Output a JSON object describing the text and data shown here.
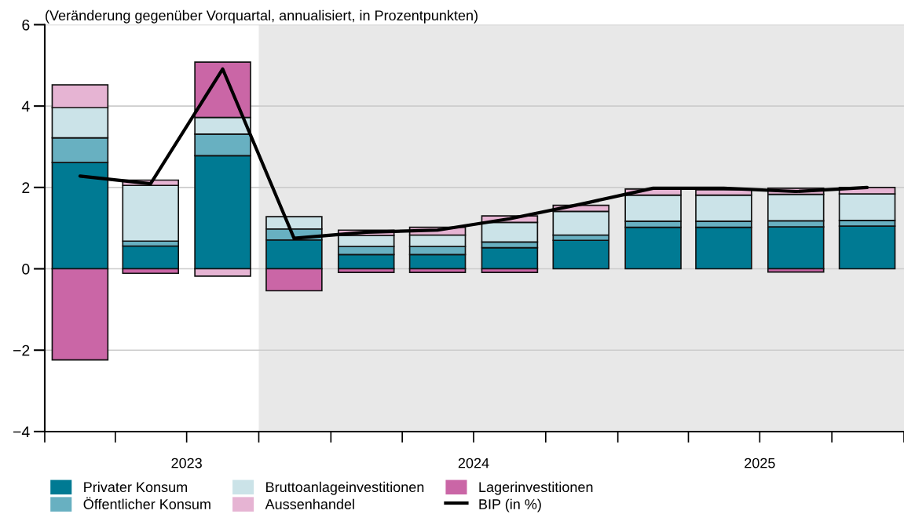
{
  "chart_data": {
    "type": "bar",
    "stacked": true,
    "title": "(Veränderung gegenüber Vorquartal, annualisiert, in Prozentpunkten)",
    "x": [
      "2023-02-15",
      "2023-05-16",
      "2023-08-16",
      "2023-11-15",
      "2024-02-15",
      "2024-05-16",
      "2024-08-16",
      "2024-11-15",
      "2025-02-15",
      "2025-05-16",
      "2025-08-16",
      "2025-11-15"
    ],
    "xlim": [
      "2023-01-01",
      "2026-01-01"
    ],
    "xticks": [
      {
        "value": "2023-01-01",
        "label": null
      },
      {
        "value": "2023-04-01",
        "label": null
      },
      {
        "value": "2023-07-01",
        "label": "2023"
      },
      {
        "value": "2023-10-01",
        "label": null
      },
      {
        "value": "2024-01-01",
        "label": null
      },
      {
        "value": "2024-04-01",
        "label": null
      },
      {
        "value": "2024-07-01",
        "label": "2024"
      },
      {
        "value": "2024-10-01",
        "label": null
      },
      {
        "value": "2025-01-01",
        "label": null
      },
      {
        "value": "2025-04-01",
        "label": null
      },
      {
        "value": "2025-07-01",
        "label": "2025"
      },
      {
        "value": "2025-10-01",
        "label": null
      },
      {
        "value": "2026-01-01",
        "label": null
      }
    ],
    "ylim": [
      -4,
      6
    ],
    "yticks": [
      -4,
      -2,
      0,
      2,
      4,
      6
    ],
    "grid": "y",
    "legend": "bottom",
    "bands": [
      {
        "axis": "x",
        "from": "2023-10-01",
        "to": "2026-01-01",
        "label": null,
        "color": "#e8e8e8"
      }
    ],
    "series": [
      {
        "name": "Privater Konsum",
        "color": "#007a93",
        "values": [
          2.61,
          0.56,
          2.78,
          0.71,
          0.35,
          0.35,
          0.52,
          0.7,
          1.02,
          1.02,
          1.03,
          1.05
        ]
      },
      {
        "name": "Öffentlicher Konsum",
        "color": "#68b0c1",
        "values": [
          0.61,
          0.12,
          0.53,
          0.27,
          0.2,
          0.2,
          0.14,
          0.13,
          0.15,
          0.15,
          0.15,
          0.14
        ]
      },
      {
        "name": "Bruttoanlageinvestitionen",
        "color": "#cbe3e8",
        "values": [
          0.74,
          1.37,
          0.41,
          0.3,
          0.27,
          0.28,
          0.48,
          0.58,
          0.64,
          0.64,
          0.65,
          0.65
        ]
      },
      {
        "name": "Aussenhandel",
        "color": "#e6b4d3",
        "values": [
          0.56,
          0.13,
          -0.18,
          0,
          0.13,
          0.19,
          0.16,
          0.15,
          0.15,
          0.13,
          0.15,
          0.16
        ]
      },
      {
        "name": "Lagerinvestitionen",
        "color": "#ca66a6",
        "values": [
          -2.24,
          -0.11,
          1.36,
          -0.54,
          -0.09,
          -0.09,
          -0.09,
          0,
          0,
          0,
          -0.08,
          0
        ]
      },
      {
        "name": "BIP (in %)",
        "type": "line",
        "color": "#000000",
        "values": [
          2.28,
          2.09,
          4.91,
          0.75,
          0.9,
          0.95,
          1.23,
          1.59,
          1.98,
          1.98,
          1.9,
          2.0
        ]
      }
    ]
  }
}
